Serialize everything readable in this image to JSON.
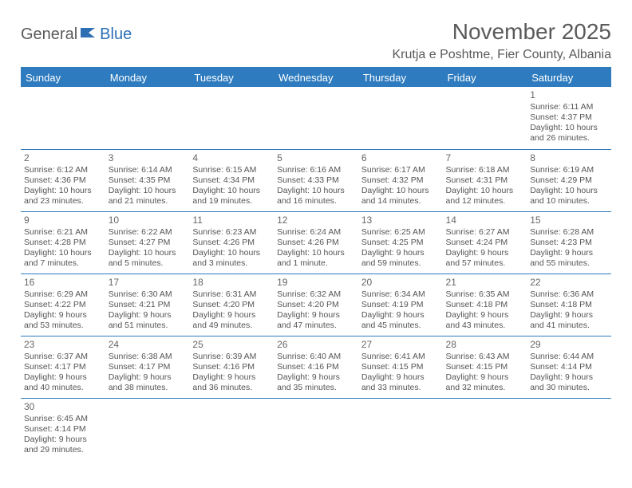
{
  "logo": {
    "part1": "General",
    "part2": "Blue"
  },
  "title": "November 2025",
  "location": "Krutja e Poshtme, Fier County, Albania",
  "colors": {
    "header_bg": "#2e7bbf",
    "header_text": "#ffffff",
    "border": "#2e7bbf",
    "body_text": "#555555",
    "title_text": "#5a5a5a",
    "logo_accent": "#2e6fb4"
  },
  "weekdays": [
    "Sunday",
    "Monday",
    "Tuesday",
    "Wednesday",
    "Thursday",
    "Friday",
    "Saturday"
  ],
  "weeks": [
    [
      null,
      null,
      null,
      null,
      null,
      null,
      {
        "n": "1",
        "sr": "Sunrise: 6:11 AM",
        "ss": "Sunset: 4:37 PM",
        "dl": "Daylight: 10 hours and 26 minutes."
      }
    ],
    [
      {
        "n": "2",
        "sr": "Sunrise: 6:12 AM",
        "ss": "Sunset: 4:36 PM",
        "dl": "Daylight: 10 hours and 23 minutes."
      },
      {
        "n": "3",
        "sr": "Sunrise: 6:14 AM",
        "ss": "Sunset: 4:35 PM",
        "dl": "Daylight: 10 hours and 21 minutes."
      },
      {
        "n": "4",
        "sr": "Sunrise: 6:15 AM",
        "ss": "Sunset: 4:34 PM",
        "dl": "Daylight: 10 hours and 19 minutes."
      },
      {
        "n": "5",
        "sr": "Sunrise: 6:16 AM",
        "ss": "Sunset: 4:33 PM",
        "dl": "Daylight: 10 hours and 16 minutes."
      },
      {
        "n": "6",
        "sr": "Sunrise: 6:17 AM",
        "ss": "Sunset: 4:32 PM",
        "dl": "Daylight: 10 hours and 14 minutes."
      },
      {
        "n": "7",
        "sr": "Sunrise: 6:18 AM",
        "ss": "Sunset: 4:31 PM",
        "dl": "Daylight: 10 hours and 12 minutes."
      },
      {
        "n": "8",
        "sr": "Sunrise: 6:19 AM",
        "ss": "Sunset: 4:29 PM",
        "dl": "Daylight: 10 hours and 10 minutes."
      }
    ],
    [
      {
        "n": "9",
        "sr": "Sunrise: 6:21 AM",
        "ss": "Sunset: 4:28 PM",
        "dl": "Daylight: 10 hours and 7 minutes."
      },
      {
        "n": "10",
        "sr": "Sunrise: 6:22 AM",
        "ss": "Sunset: 4:27 PM",
        "dl": "Daylight: 10 hours and 5 minutes."
      },
      {
        "n": "11",
        "sr": "Sunrise: 6:23 AM",
        "ss": "Sunset: 4:26 PM",
        "dl": "Daylight: 10 hours and 3 minutes."
      },
      {
        "n": "12",
        "sr": "Sunrise: 6:24 AM",
        "ss": "Sunset: 4:26 PM",
        "dl": "Daylight: 10 hours and 1 minute."
      },
      {
        "n": "13",
        "sr": "Sunrise: 6:25 AM",
        "ss": "Sunset: 4:25 PM",
        "dl": "Daylight: 9 hours and 59 minutes."
      },
      {
        "n": "14",
        "sr": "Sunrise: 6:27 AM",
        "ss": "Sunset: 4:24 PM",
        "dl": "Daylight: 9 hours and 57 minutes."
      },
      {
        "n": "15",
        "sr": "Sunrise: 6:28 AM",
        "ss": "Sunset: 4:23 PM",
        "dl": "Daylight: 9 hours and 55 minutes."
      }
    ],
    [
      {
        "n": "16",
        "sr": "Sunrise: 6:29 AM",
        "ss": "Sunset: 4:22 PM",
        "dl": "Daylight: 9 hours and 53 minutes."
      },
      {
        "n": "17",
        "sr": "Sunrise: 6:30 AM",
        "ss": "Sunset: 4:21 PM",
        "dl": "Daylight: 9 hours and 51 minutes."
      },
      {
        "n": "18",
        "sr": "Sunrise: 6:31 AM",
        "ss": "Sunset: 4:20 PM",
        "dl": "Daylight: 9 hours and 49 minutes."
      },
      {
        "n": "19",
        "sr": "Sunrise: 6:32 AM",
        "ss": "Sunset: 4:20 PM",
        "dl": "Daylight: 9 hours and 47 minutes."
      },
      {
        "n": "20",
        "sr": "Sunrise: 6:34 AM",
        "ss": "Sunset: 4:19 PM",
        "dl": "Daylight: 9 hours and 45 minutes."
      },
      {
        "n": "21",
        "sr": "Sunrise: 6:35 AM",
        "ss": "Sunset: 4:18 PM",
        "dl": "Daylight: 9 hours and 43 minutes."
      },
      {
        "n": "22",
        "sr": "Sunrise: 6:36 AM",
        "ss": "Sunset: 4:18 PM",
        "dl": "Daylight: 9 hours and 41 minutes."
      }
    ],
    [
      {
        "n": "23",
        "sr": "Sunrise: 6:37 AM",
        "ss": "Sunset: 4:17 PM",
        "dl": "Daylight: 9 hours and 40 minutes."
      },
      {
        "n": "24",
        "sr": "Sunrise: 6:38 AM",
        "ss": "Sunset: 4:17 PM",
        "dl": "Daylight: 9 hours and 38 minutes."
      },
      {
        "n": "25",
        "sr": "Sunrise: 6:39 AM",
        "ss": "Sunset: 4:16 PM",
        "dl": "Daylight: 9 hours and 36 minutes."
      },
      {
        "n": "26",
        "sr": "Sunrise: 6:40 AM",
        "ss": "Sunset: 4:16 PM",
        "dl": "Daylight: 9 hours and 35 minutes."
      },
      {
        "n": "27",
        "sr": "Sunrise: 6:41 AM",
        "ss": "Sunset: 4:15 PM",
        "dl": "Daylight: 9 hours and 33 minutes."
      },
      {
        "n": "28",
        "sr": "Sunrise: 6:43 AM",
        "ss": "Sunset: 4:15 PM",
        "dl": "Daylight: 9 hours and 32 minutes."
      },
      {
        "n": "29",
        "sr": "Sunrise: 6:44 AM",
        "ss": "Sunset: 4:14 PM",
        "dl": "Daylight: 9 hours and 30 minutes."
      }
    ],
    [
      {
        "n": "30",
        "sr": "Sunrise: 6:45 AM",
        "ss": "Sunset: 4:14 PM",
        "dl": "Daylight: 9 hours and 29 minutes."
      },
      null,
      null,
      null,
      null,
      null,
      null
    ]
  ]
}
